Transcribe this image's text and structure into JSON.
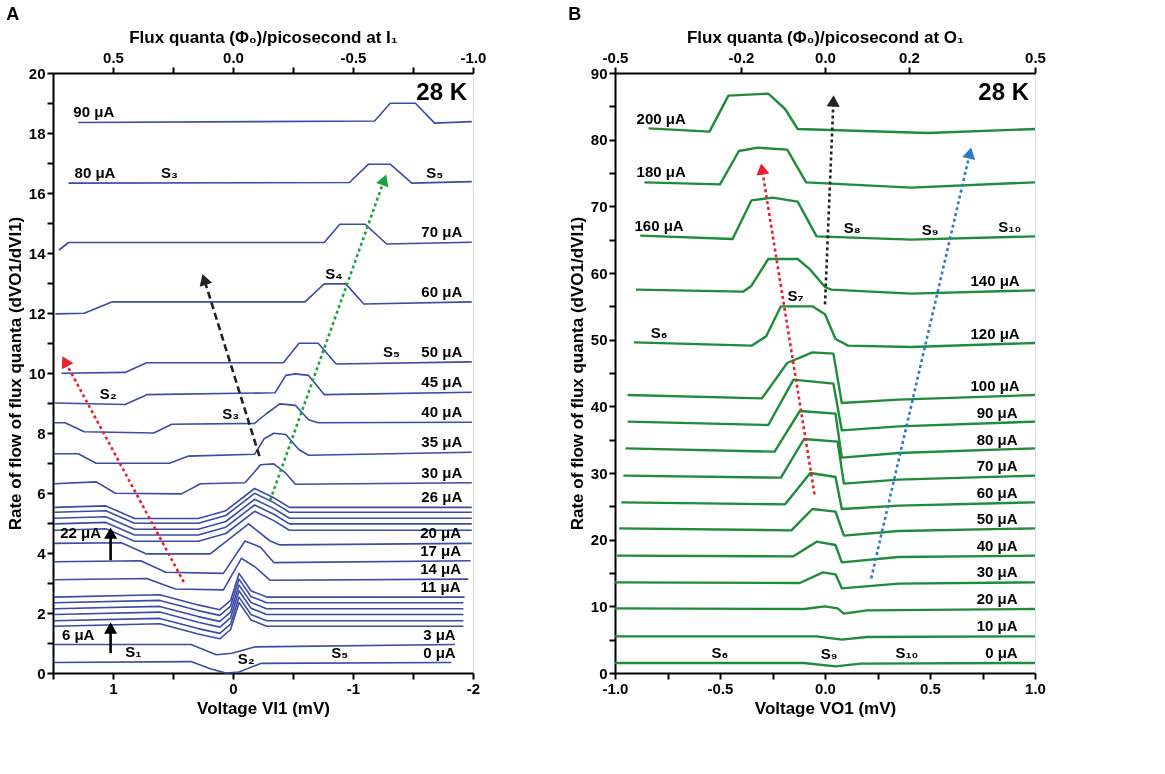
{
  "chart_data": [
    {
      "type": "line",
      "title": "A",
      "xlabel": "Voltage VI1 (mV)",
      "ylabel": "Rate of flow of flux quanta (dVO1/dVI1)",
      "x2label": "Flux quanta (Φ₀)/picosecond at I₁",
      "xlim": [
        1.5,
        -2.0
      ],
      "xticks": [
        {
          "value": 1.5,
          "label": null
        },
        1,
        {
          "value": 0.5,
          "label": null
        },
        0,
        {
          "value": -0.5,
          "label": null
        },
        -1,
        {
          "value": -1.5,
          "label": null
        },
        -2
      ],
      "x2lim": [
        0.75,
        -1.0
      ],
      "x2ticks": [
        0.5,
        {
          "value": 0.25,
          "label": null
        },
        {
          "value": 0.0,
          "label": "0.0"
        },
        {
          "value": -0.25,
          "label": null
        },
        -0.5,
        {
          "value": -0.75,
          "label": null
        },
        {
          "value": -1.0,
          "label": "-1.0"
        }
      ],
      "ylim": [
        0,
        20
      ],
      "yticks": [
        0,
        {
          "value": 1,
          "label": null
        },
        2,
        {
          "value": 3,
          "label": null
        },
        4,
        {
          "value": 5,
          "label": null
        },
        6,
        {
          "value": 7,
          "label": null
        },
        8,
        {
          "value": 9,
          "label": null
        },
        10,
        {
          "value": 11,
          "label": null
        },
        12,
        {
          "value": 13,
          "label": null
        },
        14,
        {
          "value": 15,
          "label": null
        },
        16,
        {
          "value": 17,
          "label": null
        },
        18,
        {
          "value": 19,
          "label": null
        },
        20
      ],
      "line_style": "solid",
      "series": [
        {
          "color": "#3b4ba6",
          "x": [
            1.49,
            0.35,
            0.19,
            0.06,
            -0.05,
            -0.23,
            -1.82
          ],
          "values": [
            0.35,
            0.38,
            0.14,
            0.0,
            0.03,
            0.32,
            0.35
          ]
        },
        {
          "color": "#3b4ba6",
          "x": [
            1.49,
            0.35,
            0.14,
            0.01,
            -0.18,
            -1.85
          ],
          "values": [
            0.95,
            0.95,
            0.61,
            0.66,
            0.87,
            0.95
          ]
        },
        {
          "color": "#3b4ba6",
          "x": [
            1.49,
            0.61,
            0.29,
            0.11,
            0.02,
            -0.05,
            -0.15,
            -0.28,
            -1.92
          ],
          "values": [
            1.56,
            1.64,
            1.3,
            1.14,
            1.45,
            2.35,
            1.77,
            1.56,
            1.56
          ]
        },
        {
          "color": "#3b4ba6",
          "x": [
            1.49,
            0.61,
            0.29,
            0.11,
            0.02,
            -0.05,
            -0.15,
            -0.28,
            -1.92
          ],
          "values": [
            1.74,
            1.82,
            1.48,
            1.32,
            1.63,
            2.53,
            1.95,
            1.74,
            1.74
          ]
        },
        {
          "color": "#3b4ba6",
          "x": [
            1.49,
            0.61,
            0.29,
            0.11,
            0.02,
            -0.05,
            -0.15,
            -0.28,
            -1.92
          ],
          "values": [
            1.95,
            2.03,
            1.69,
            1.53,
            1.84,
            2.74,
            2.16,
            1.95,
            1.95
          ]
        },
        {
          "color": "#3b4ba6",
          "x": [
            1.49,
            0.61,
            0.29,
            0.11,
            0.02,
            -0.05,
            -0.15,
            -0.28,
            -1.92
          ],
          "values": [
            2.14,
            2.22,
            1.88,
            1.72,
            2.03,
            2.93,
            2.35,
            2.14,
            2.14
          ]
        },
        {
          "color": "#3b4ba6",
          "x": [
            1.49,
            0.61,
            0.29,
            0.11,
            0.02,
            -0.05,
            -0.15,
            -0.28,
            -1.92
          ],
          "values": [
            2.34,
            2.42,
            2.08,
            1.92,
            2.23,
            3.13,
            2.55,
            2.34,
            2.34
          ]
        },
        {
          "color": "#3b4ba6",
          "x": [
            1.49,
            0.61,
            0.29,
            0.11,
            0.02,
            -0.05,
            -0.15,
            -0.28,
            -1.93
          ],
          "values": [
            2.53,
            2.61,
            2.27,
            2.11,
            2.42,
            3.32,
            2.74,
            2.53,
            2.53
          ]
        },
        {
          "color": "#3b4ba6",
          "x": [
            1.49,
            0.72,
            0.48,
            0.08,
            -0.07,
            -0.18,
            -0.31,
            -1.96
          ],
          "values": [
            3.11,
            3.15,
            2.8,
            2.77,
            3.82,
            3.55,
            3.09,
            3.13
          ]
        },
        {
          "color": "#3b4ba6",
          "x": [
            1.49,
            0.77,
            0.56,
            0.08,
            -0.1,
            -0.23,
            -0.34,
            -1.98
          ],
          "values": [
            3.71,
            3.74,
            3.36,
            3.32,
            4.4,
            4.19,
            3.68,
            3.74
          ]
        },
        {
          "color": "#3b4ba6",
          "x": [
            1.49,
            0.93,
            0.72,
            0.19,
            -0.13,
            -0.31,
            -0.39,
            -1.99
          ],
          "values": [
            4.32,
            4.34,
            3.97,
            3.97,
            4.97,
            4.4,
            4.27,
            4.32
          ]
        },
        {
          "color": "#3b4ba6",
          "x": [
            1.49,
            1.06,
            0.82,
            0.29,
            0.06,
            -0.18,
            -0.34,
            -0.47,
            -1.99
          ],
          "values": [
            4.76,
            4.81,
            4.39,
            4.39,
            4.65,
            5.39,
            5.08,
            4.76,
            4.76
          ]
        },
        {
          "color": "#3b4ba6",
          "x": [
            1.49,
            1.06,
            0.82,
            0.29,
            0.06,
            -0.18,
            -0.34,
            -0.47,
            -1.99
          ],
          "values": [
            4.97,
            5.02,
            4.6,
            4.6,
            4.86,
            5.6,
            5.29,
            4.97,
            4.97
          ]
        },
        {
          "color": "#3b4ba6",
          "x": [
            1.49,
            1.06,
            0.82,
            0.29,
            0.06,
            -0.18,
            -0.34,
            -0.47,
            -1.99
          ],
          "values": [
            5.16,
            5.21,
            4.79,
            4.79,
            5.05,
            5.79,
            5.48,
            5.16,
            5.16
          ]
        },
        {
          "color": "#3b4ba6",
          "x": [
            1.49,
            1.06,
            0.82,
            0.29,
            0.06,
            -0.18,
            -0.34,
            -0.47,
            -1.99
          ],
          "values": [
            5.36,
            5.41,
            4.99,
            4.99,
            5.25,
            5.99,
            5.68,
            5.36,
            5.36
          ]
        },
        {
          "color": "#3b4ba6",
          "x": [
            1.49,
            1.06,
            0.82,
            0.29,
            0.06,
            -0.18,
            -0.34,
            -0.47,
            -1.99
          ],
          "values": [
            5.52,
            5.57,
            5.15,
            5.15,
            5.41,
            6.15,
            5.84,
            5.52,
            5.52
          ]
        },
        {
          "color": "#3b4ba6",
          "x": [
            1.49,
            1.14,
            0.98,
            0.43,
            0.27,
            -0.1,
            -0.23,
            -0.34,
            -0.44,
            -0.52,
            -1.99
          ],
          "values": [
            6.31,
            6.37,
            5.99,
            5.97,
            6.31,
            6.34,
            6.94,
            6.97,
            6.66,
            6.29,
            6.34
          ]
        },
        {
          "color": "#3b4ba6",
          "x": [
            1.49,
            1.29,
            1.14,
            0.53,
            0.37,
            -0.18,
            -0.26,
            -0.34,
            -0.44,
            -0.55,
            -0.63,
            -1.99
          ],
          "values": [
            7.31,
            7.31,
            6.99,
            6.99,
            7.23,
            7.29,
            7.81,
            7.99,
            7.95,
            7.44,
            7.26,
            7.36
          ]
        },
        {
          "color": "#3b4ba6",
          "x": [
            1.49,
            1.4,
            1.24,
            0.66,
            0.51,
            -0.18,
            -0.28,
            -0.39,
            -0.52,
            -0.63,
            -0.71,
            -1.99
          ],
          "values": [
            8.34,
            8.34,
            8.04,
            8.0,
            8.29,
            8.32,
            8.65,
            8.97,
            8.92,
            8.44,
            8.34,
            8.36
          ]
        },
        {
          "color": "#3b4ba6",
          "x": [
            1.49,
            0.9,
            0.74,
            0.72,
            -0.35,
            -0.44,
            -0.52,
            -0.63,
            -0.76,
            -1.99
          ],
          "values": [
            9.0,
            8.95,
            9.23,
            9.28,
            9.34,
            9.92,
            9.97,
            9.92,
            9.28,
            9.36
          ]
        },
        {
          "color": "#3b4ba6",
          "x": [
            1.43,
            0.9,
            0.72,
            -0.42,
            -0.55,
            -0.71,
            -0.86,
            -1.99
          ],
          "values": [
            9.99,
            10.02,
            10.34,
            10.34,
            10.99,
            10.99,
            10.3,
            10.37
          ]
        },
        {
          "color": "#3b4ba6",
          "x": [
            1.48,
            1.24,
            1.01,
            -0.6,
            -0.76,
            -0.94,
            -1.09,
            -1.99
          ],
          "values": [
            11.97,
            11.99,
            12.37,
            12.37,
            12.97,
            12.97,
            12.3,
            12.37
          ]
        },
        {
          "color": "#3b4ba6",
          "x": [
            1.45,
            1.37,
            -0.76,
            -0.89,
            -1.1,
            -1.28,
            -1.99
          ],
          "values": [
            14.1,
            14.35,
            14.35,
            14.96,
            14.96,
            14.3,
            14.36
          ]
        },
        {
          "color": "#3b4ba6",
          "x": [
            1.37,
            -0.97,
            -1.13,
            -1.31,
            -1.49,
            -1.99
          ],
          "values": [
            16.33,
            16.35,
            16.96,
            16.96,
            16.33,
            16.38
          ]
        },
        {
          "color": "#3b4ba6",
          "x": [
            1.29,
            -1.18,
            -1.31,
            -1.52,
            -1.68,
            -1.99
          ],
          "values": [
            18.35,
            18.4,
            18.99,
            18.99,
            18.33,
            18.38
          ]
        },
        {
          "color": "#e8202a",
          "line_style": "dotted",
          "marker": "triangle",
          "x": [
            0.41,
            1.4
          ],
          "values": [
            3.03,
            10.39
          ]
        },
        {
          "color": "#222222",
          "line_style": "dashed",
          "marker": "triangle",
          "x": [
            -0.22,
            0.24
          ],
          "values": [
            7.23,
            13.12
          ]
        },
        {
          "color": "#1aa33a",
          "line_style": "dotted",
          "marker": "triangle",
          "x": [
            -0.31,
            -1.26
          ],
          "values": [
            5.76,
            16.44
          ]
        },
        {
          "color": "#000000",
          "marker": "triangle",
          "x": [
            1.02,
            1.02
          ],
          "values": [
            0.66,
            1.5
          ]
        },
        {
          "color": "#000000",
          "marker": "triangle",
          "x": [
            1.02,
            1.02
          ],
          "values": [
            3.76,
            4.66
          ]
        }
      ],
      "annotations": [
        "28 K",
        {
          "text": "90 μA",
          "x": 1.16,
          "y": 18.36
        },
        {
          "text": "80 μA",
          "x": 1.15,
          "y": 16.35
        },
        {
          "text": "70 μA",
          "x": -1.74,
          "y": 14.36
        },
        {
          "text": "60 μA",
          "x": -1.74,
          "y": 12.37
        },
        {
          "text": "50 μA",
          "x": -1.74,
          "y": 10.37
        },
        {
          "text": "45 μA",
          "x": -1.74,
          "y": 9.36
        },
        {
          "text": "40 μA",
          "x": -1.74,
          "y": 8.36
        },
        {
          "text": "35 μA",
          "x": -1.74,
          "y": 7.36
        },
        {
          "text": "30 μA",
          "x": -1.74,
          "y": 6.34
        },
        {
          "text": "26 μA",
          "x": -1.74,
          "y": 5.52
        },
        {
          "text": "20 μA",
          "x": -1.73,
          "y": 4.32
        },
        {
          "text": "17 μA",
          "x": -1.73,
          "y": 3.74
        },
        {
          "text": "14 μA",
          "x": -1.73,
          "y": 3.13
        },
        {
          "text": "11 μA",
          "x": -1.73,
          "y": 2.53
        },
        {
          "text": "3 μA",
          "x": -1.72,
          "y": 0.95
        },
        {
          "text": "0 μA",
          "x": -1.72,
          "y": 0.35
        },
        {
          "text": "22 μA",
          "x": 1.27,
          "y": 4.32
        },
        {
          "text": "6 μA",
          "x": 1.29,
          "y": 0.95
        },
        {
          "text": "S₃",
          "x": 0.53,
          "y": 16.35
        },
        {
          "text": "S₅",
          "x": -1.68,
          "y": 16.35
        },
        {
          "text": "S₄",
          "x": -0.84,
          "y": 12.97
        },
        {
          "text": "S₅",
          "x": -1.32,
          "y": 10.37
        },
        {
          "text": "S₂",
          "x": 1.04,
          "y": 8.96
        },
        {
          "text": "S₃",
          "x": 0.02,
          "y": 8.31
        },
        {
          "text": "S₁",
          "x": 0.83,
          "y": 0.37
        },
        {
          "text": "S₂",
          "x": -0.11,
          "y": 0.12
        },
        {
          "text": "S₅",
          "x": -0.89,
          "y": 0.35
        }
      ]
    },
    {
      "type": "line",
      "title": "B",
      "xlabel": "Voltage VO1 (mV)",
      "ylabel": "Rate of flow of flux quanta (dVO1/dVI1)",
      "x2label": "Flux quanta (Φ₀)/picosecond at O₁",
      "xlim": [
        -1.0,
        1.0
      ],
      "xticks": [
        {
          "value": -1.0,
          "label": "-1.0"
        },
        {
          "value": -0.75,
          "label": null
        },
        -0.5,
        {
          "value": -0.25,
          "label": null
        },
        {
          "value": 0.0,
          "label": "0.0"
        },
        {
          "value": 0.25,
          "label": null
        },
        0.5,
        {
          "value": 0.75,
          "label": null
        },
        {
          "value": 1.0,
          "label": "1.0"
        }
      ],
      "x2lim": [
        -0.5,
        0.5
      ],
      "x2ticks": [
        -0.5,
        -0.2,
        {
          "value": 0.0,
          "label": "0.0"
        },
        0.2,
        0.5
      ],
      "ylim": [
        0,
        90
      ],
      "yticks": [
        0,
        {
          "value": 5,
          "label": null
        },
        10,
        {
          "value": 15,
          "label": null
        },
        20,
        {
          "value": 25,
          "label": null
        },
        30,
        {
          "value": 35,
          "label": null
        },
        40,
        {
          "value": 45,
          "label": null
        },
        50,
        {
          "value": 55,
          "label": null
        },
        60,
        {
          "value": 65,
          "label": null
        },
        70,
        {
          "value": 75,
          "label": null
        },
        80,
        {
          "value": 85,
          "label": null
        },
        90
      ],
      "line_style": "solid",
      "series": [
        {
          "color": "#1e8c3a",
          "x": [
            -1.0,
            -0.1,
            0.05,
            0.17,
            1.0
          ],
          "values": [
            1.5,
            1.5,
            1.0,
            1.4,
            1.5
          ]
        },
        {
          "color": "#1e8c3a",
          "x": [
            -1.0,
            -0.04,
            0.08,
            0.2,
            1.0
          ],
          "values": [
            5.5,
            5.5,
            5.0,
            5.4,
            5.5
          ]
        },
        {
          "color": "#1e8c3a",
          "x": [
            -1.0,
            -0.1,
            0.0,
            0.06,
            0.09,
            0.2,
            1.0
          ],
          "values": [
            9.7,
            9.6,
            10.0,
            9.7,
            8.9,
            9.4,
            9.6
          ]
        },
        {
          "color": "#1e8c3a",
          "x": [
            -1.0,
            -0.12,
            -0.01,
            0.05,
            0.08,
            0.35,
            1.0
          ],
          "values": [
            13.6,
            13.5,
            15.1,
            14.8,
            12.7,
            13.4,
            13.6
          ]
        },
        {
          "color": "#1e8c3a",
          "x": [
            -0.99,
            -0.15,
            -0.04,
            0.05,
            0.08,
            0.35,
            1.0
          ],
          "values": [
            17.6,
            17.5,
            19.7,
            19.2,
            16.6,
            17.4,
            17.6
          ]
        },
        {
          "color": "#1e8c3a",
          "x": [
            -0.98,
            -0.16,
            -0.06,
            0.05,
            0.09,
            0.35,
            1.0
          ],
          "values": [
            21.7,
            21.4,
            24.6,
            24.2,
            20.6,
            21.3,
            21.7
          ]
        },
        {
          "color": "#1e8c3a",
          "x": [
            -0.97,
            -0.19,
            -0.07,
            0.05,
            0.08,
            0.35,
            1.0
          ],
          "values": [
            25.6,
            25.3,
            30.0,
            29.4,
            24.6,
            25.1,
            25.6
          ]
        },
        {
          "color": "#1e8c3a",
          "x": [
            -0.96,
            -0.21,
            -0.1,
            0.06,
            0.09,
            0.35,
            1.0
          ],
          "values": [
            29.6,
            29.3,
            35.1,
            34.7,
            28.4,
            29.0,
            29.6
          ]
        },
        {
          "color": "#1e8c3a",
          "x": [
            -0.95,
            -0.24,
            -0.12,
            0.05,
            0.08,
            0.35,
            1.0
          ],
          "values": [
            33.7,
            33.2,
            39.3,
            38.9,
            32.3,
            33.0,
            33.7
          ]
        },
        {
          "color": "#1e8c3a",
          "x": [
            -0.94,
            -0.27,
            -0.15,
            0.04,
            0.08,
            0.35,
            1.0
          ],
          "values": [
            37.7,
            37.2,
            44.0,
            43.4,
            36.4,
            37.0,
            37.7
          ]
        },
        {
          "color": "#1e8c3a",
          "x": [
            -0.94,
            -0.3,
            -0.18,
            -0.06,
            0.04,
            0.08,
            0.35,
            1.0
          ],
          "values": [
            41.7,
            41.2,
            46.5,
            48.1,
            47.9,
            40.5,
            41.0,
            41.7
          ]
        },
        {
          "color": "#1e8c3a",
          "x": [
            -0.91,
            -0.35,
            -0.28,
            -0.21,
            -0.06,
            0.0,
            0.05,
            0.11,
            0.41,
            1.0
          ],
          "values": [
            49.6,
            49.1,
            50.5,
            55.0,
            55.0,
            53.8,
            50.1,
            49.1,
            48.9,
            49.5
          ]
        },
        {
          "color": "#1e8c3a",
          "x": [
            -0.9,
            -0.39,
            -0.35,
            -0.27,
            -0.13,
            -0.07,
            0.0,
            0.03,
            0.41,
            1.0
          ],
          "values": [
            57.5,
            57.2,
            58.1,
            62.1,
            62.1,
            60.5,
            57.9,
            57.5,
            56.9,
            57.4
          ]
        },
        {
          "color": "#1e8c3a",
          "x": [
            -0.88,
            -0.44,
            -0.35,
            -0.25,
            -0.13,
            -0.04,
            0.41,
            1.0
          ],
          "values": [
            65.6,
            65.1,
            70.9,
            71.3,
            70.7,
            65.5,
            65.0,
            65.5
          ]
        },
        {
          "color": "#1e8c3a",
          "x": [
            -0.86,
            -0.5,
            -0.41,
            -0.32,
            -0.18,
            -0.09,
            0.41,
            1.0
          ],
          "values": [
            73.6,
            73.3,
            78.3,
            78.8,
            78.5,
            73.6,
            72.8,
            73.6
          ]
        },
        {
          "color": "#1e8c3a",
          "x": [
            -0.84,
            -0.55,
            -0.46,
            -0.27,
            -0.19,
            -0.13,
            0.49,
            1.0
          ],
          "values": [
            81.7,
            81.2,
            86.6,
            86.9,
            84.6,
            81.6,
            81.0,
            81.6
          ]
        },
        {
          "color": "#e8202a",
          "line_style": "dotted",
          "marker": "triangle",
          "x": [
            -0.05,
            -0.3
          ],
          "values": [
            26.8,
            75.6
          ]
        },
        {
          "color": "#222222",
          "line_style": "dotted",
          "marker": "triangle",
          "x": [
            0.0,
            0.04
          ],
          "values": [
            55.3,
            85.8
          ]
        },
        {
          "color": "#2b7bcc",
          "line_style": "dotted",
          "marker": "triangle",
          "x": [
            0.22,
            0.69
          ],
          "values": [
            14.2,
            78.0
          ]
        }
      ],
      "annotations": [
        "28 K",
        {
          "text": "200 μA",
          "x": -0.78,
          "y": 81.6
        },
        {
          "text": "180 μA",
          "x": -0.78,
          "y": 73.6
        },
        {
          "text": "160 μA",
          "x": -0.79,
          "y": 65.5
        },
        {
          "text": "140 μA",
          "x": 0.81,
          "y": 57.3
        },
        {
          "text": "120 μA",
          "x": 0.81,
          "y": 49.3
        },
        {
          "text": "100 μA",
          "x": 0.81,
          "y": 41.5
        },
        {
          "text": "90 μA",
          "x": 0.82,
          "y": 37.5
        },
        {
          "text": "80 μA",
          "x": 0.82,
          "y": 33.5
        },
        {
          "text": "70 μA",
          "x": 0.82,
          "y": 29.5
        },
        {
          "text": "60 μA",
          "x": 0.82,
          "y": 25.5
        },
        {
          "text": "50 μA",
          "x": 0.82,
          "y": 21.6
        },
        {
          "text": "40 μA",
          "x": 0.82,
          "y": 17.6
        },
        {
          "text": "30 μA",
          "x": 0.82,
          "y": 13.6
        },
        {
          "text": "20 μA",
          "x": 0.82,
          "y": 9.6
        },
        {
          "text": "10 μA",
          "x": 0.82,
          "y": 5.5
        },
        {
          "text": "0 μA",
          "x": 0.84,
          "y": 1.5
        },
        {
          "text": "S₈",
          "x": 0.13,
          "y": 65.3
        },
        {
          "text": "S₉",
          "x": 0.5,
          "y": 65.0
        },
        {
          "text": "S₁₀",
          "x": 0.88,
          "y": 65.4
        },
        {
          "text": "S₇",
          "x": -0.14,
          "y": 55.0
        },
        {
          "text": "S₆",
          "x": -0.79,
          "y": 49.5
        },
        {
          "text": "S₆",
          "x": -0.5,
          "y": 1.5
        },
        {
          "text": "S₉",
          "x": 0.02,
          "y": 1.3
        },
        {
          "text": "S₁₀",
          "x": 0.39,
          "y": 1.5
        }
      ]
    }
  ]
}
